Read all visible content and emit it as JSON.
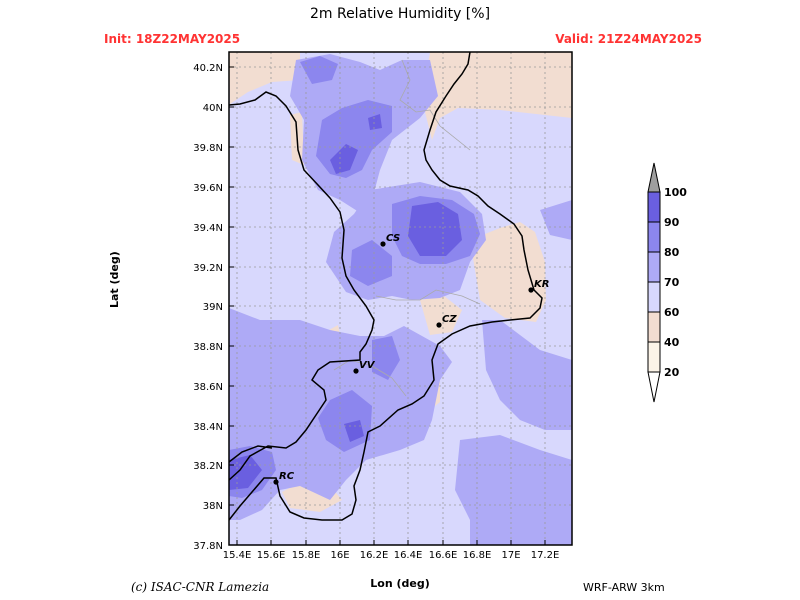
{
  "header": {
    "title": "2m Relative Humidity [%]",
    "init": "Init: 18Z22MAY2025",
    "valid": "Valid: 21Z24MAY2025"
  },
  "axes": {
    "xlabel": "Lon (deg)",
    "ylabel": "Lat (deg)",
    "x_ticks": [
      "15.4E",
      "15.6E",
      "15.8E",
      "16E",
      "16.2E",
      "16.4E",
      "16.6E",
      "16.8E",
      "17E",
      "17.2E"
    ],
    "y_ticks": [
      "40.2N",
      "40N",
      "39.8N",
      "39.6N",
      "39.4N",
      "39.2N",
      "39N",
      "38.8N",
      "38.6N",
      "38.4N",
      "38.2N",
      "38N",
      "37.8N"
    ]
  },
  "cities": [
    {
      "code": "CS",
      "lon": 16.25,
      "lat": 39.31
    },
    {
      "code": "KR",
      "lon": 17.13,
      "lat": 39.08
    },
    {
      "code": "CZ",
      "lon": 16.59,
      "lat": 38.91
    },
    {
      "code": "VV",
      "lon": 16.1,
      "lat": 38.67
    },
    {
      "code": "RC",
      "lon": 15.65,
      "lat": 38.11
    }
  ],
  "colorbar": {
    "levels": [
      "100",
      "90",
      "80",
      "70",
      "60",
      "40",
      "20"
    ],
    "colors": {
      "above_100": "#9e9e9e",
      "90_100": "#6a5fe0",
      "80_90": "#8c86ee",
      "70_80": "#aeaaf6",
      "60_70": "#d8d8fd",
      "40_60": "#f2ddd1",
      "20_40": "#fcf4e8",
      "below_20": "#ffffff"
    }
  },
  "footer": {
    "credit": "(c) ISAC-CNR Lamezia",
    "model": "WRF-ARW 3km"
  }
}
